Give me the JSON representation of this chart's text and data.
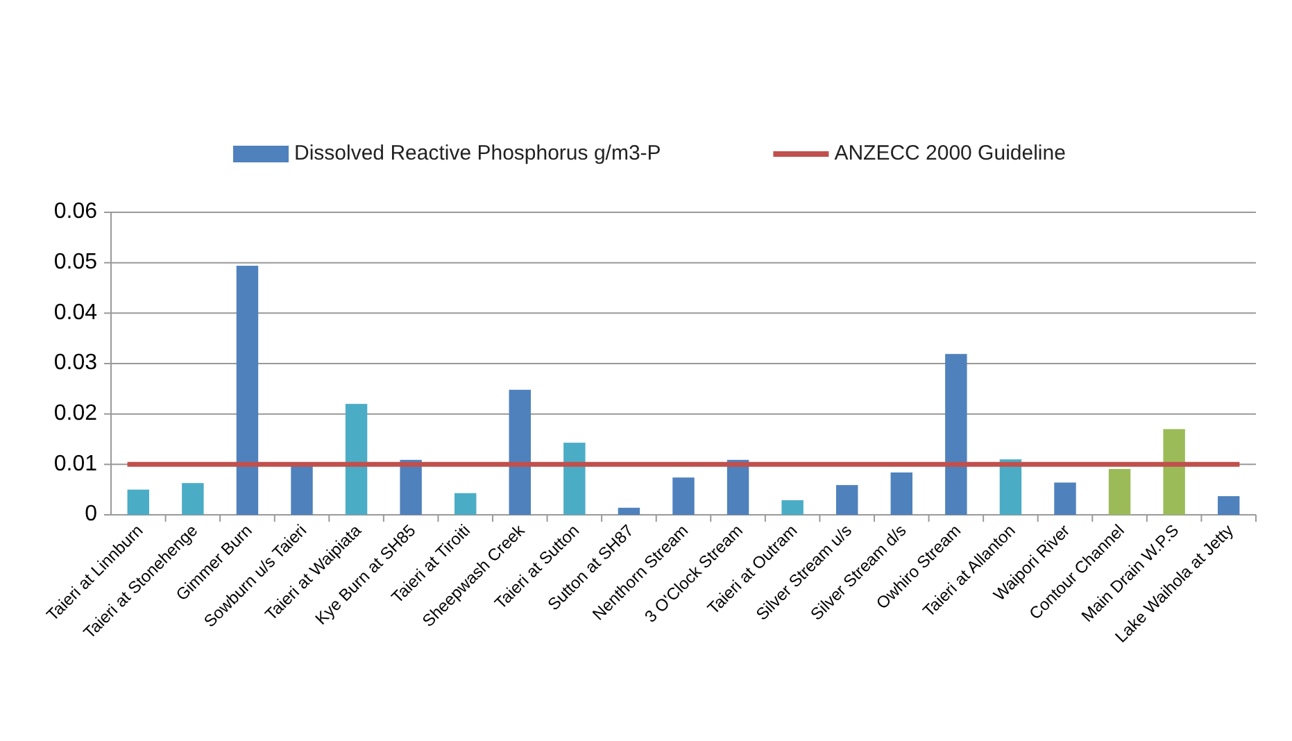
{
  "chart_data": {
    "type": "bar",
    "categories": [
      "Taieri at Linnburn",
      "Taieri at Stonehenge",
      "Gimmer Burn",
      "Sowburn u/s Taieri",
      "Taieri at Waipiata",
      "Kye Burn at SH85",
      "Taieri at Tiroiti",
      "Sheepwash Creek",
      "Taieri at Sutton",
      "Sutton at SH87",
      "Nenthorn Stream",
      "3 O'Clock Stream",
      "Taieri at Outram",
      "Silver Stream u/s",
      "Silver Stream d/s",
      "Owhiro Stream",
      "Taieri at Allanton",
      "Waipori River",
      "Contour Channel",
      "Main Drain W.P.S",
      "Lake Waihola at Jetty"
    ],
    "series": [
      {
        "name": "Dissolved Reactive Phosphorus g/m3-P",
        "color": "#4f81bd",
        "values": [
          0.005,
          0.0063,
          0.0494,
          0.0098,
          0.022,
          0.0109,
          0.0043,
          0.0248,
          0.0143,
          0.0014,
          0.0074,
          0.0109,
          0.0029,
          0.0059,
          0.0084,
          0.0319,
          0.011,
          0.0064,
          0.0091,
          0.017,
          0.0037
        ],
        "colors": [
          "#4bacc6",
          "#4bacc6",
          "#4f81bd",
          "#4f81bd",
          "#4bacc6",
          "#4f81bd",
          "#4bacc6",
          "#4f81bd",
          "#4bacc6",
          "#4f81bd",
          "#4f81bd",
          "#4f81bd",
          "#4bacc6",
          "#4f81bd",
          "#4f81bd",
          "#4f81bd",
          "#4bacc6",
          "#4f81bd",
          "#9bbb59",
          "#9bbb59",
          "#4f81bd"
        ]
      }
    ],
    "ylim": [
      0,
      0.06
    ],
    "yticks": [
      0,
      0.01,
      0.02,
      0.03,
      0.04,
      0.05,
      0.06
    ],
    "grid": "y",
    "legend": "top",
    "ref_lines": [
      {
        "axis": "y",
        "value": 0.01,
        "label": "ANZECC 2000 Guideline",
        "color": "#c0504d"
      }
    ]
  }
}
